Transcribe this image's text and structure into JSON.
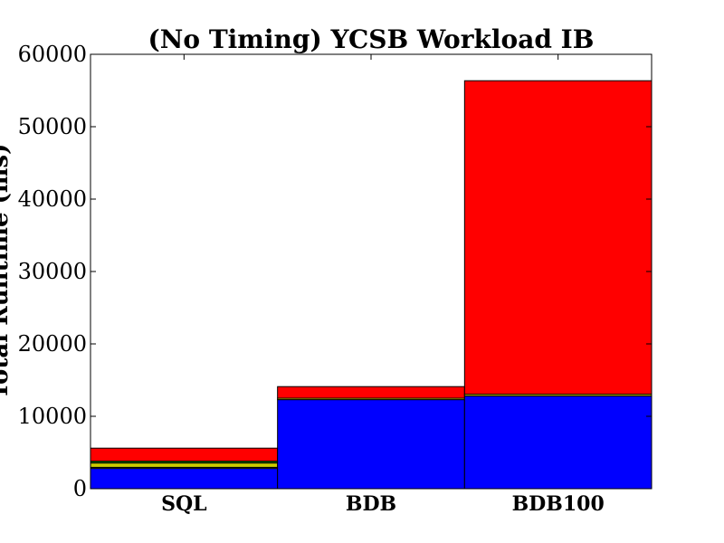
{
  "chart_data": {
    "type": "bar",
    "stacked": true,
    "title": "(No Timing) YCSB Workload IB",
    "ylabel": "Total Runtime (ms)",
    "xlabel": "",
    "categories": [
      "SQL",
      "BDB",
      "BDB100"
    ],
    "ylim": [
      0,
      60000
    ],
    "yticks": [
      0,
      10000,
      20000,
      30000,
      40000,
      50000,
      60000
    ],
    "grid": false,
    "series": [
      {
        "values": [
          2800,
          12300,
          12800
        ],
        "color": "#0000ff"
      },
      {
        "values": [
          150,
          0,
          0
        ],
        "color": "#9acd32"
      },
      {
        "values": [
          600,
          200,
          250
        ],
        "color": "#cccc00"
      },
      {
        "values": [
          250,
          0,
          0
        ],
        "color": "#008000"
      },
      {
        "values": [
          0,
          0,
          0
        ],
        "color": "#00bfbf"
      },
      {
        "values": [
          1800,
          1600,
          43300
        ],
        "color": "#ff0000"
      }
    ]
  }
}
